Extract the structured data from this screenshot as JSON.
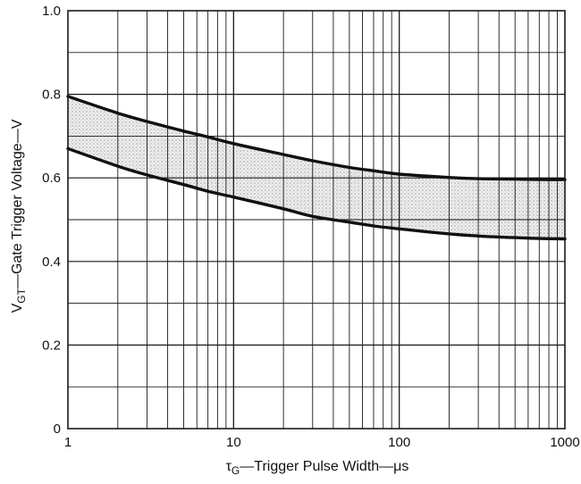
{
  "chart_data": {
    "type": "area",
    "title": "",
    "xlabel": {
      "symbol": "τ",
      "subscript": "G",
      "text": "—Trigger Pulse Width—",
      "unit": "μs"
    },
    "ylabel": {
      "symbol": "V",
      "subscript": "GT",
      "text": "—Gate Trigger Voltage—V"
    },
    "x_scale": "log",
    "xlim": [
      1,
      1000
    ],
    "ylim": [
      0,
      1.0
    ],
    "x_ticks": [
      {
        "value": 1,
        "label": "1"
      },
      {
        "value": 10,
        "label": "10"
      },
      {
        "value": 100,
        "label": "100"
      },
      {
        "value": 1000,
        "label": "1000"
      }
    ],
    "y_ticks": [
      {
        "value": 0,
        "label": "0"
      },
      {
        "value": 0.2,
        "label": "0.2"
      },
      {
        "value": 0.4,
        "label": "0.4"
      },
      {
        "value": 0.6,
        "label": "0.6"
      },
      {
        "value": 0.8,
        "label": "0.8"
      },
      {
        "value": 1.0,
        "label": "1.0"
      }
    ],
    "grid": true,
    "y_grid_step": 0.1,
    "shaded_band": true,
    "series": [
      {
        "role": "upper",
        "x": [
          1,
          2,
          3,
          5,
          7,
          10,
          20,
          30,
          50,
          70,
          100,
          200,
          300,
          500,
          700,
          1000
        ],
        "y": [
          0.795,
          0.755,
          0.735,
          0.712,
          0.698,
          0.682,
          0.656,
          0.641,
          0.625,
          0.617,
          0.609,
          0.601,
          0.598,
          0.597,
          0.596,
          0.596
        ]
      },
      {
        "role": "lower",
        "x": [
          1,
          2,
          3,
          5,
          7,
          10,
          20,
          30,
          50,
          70,
          100,
          200,
          300,
          500,
          700,
          1000
        ],
        "y": [
          0.67,
          0.628,
          0.607,
          0.584,
          0.568,
          0.554,
          0.526,
          0.508,
          0.494,
          0.485,
          0.478,
          0.466,
          0.461,
          0.457,
          0.455,
          0.454
        ]
      }
    ],
    "colors": {
      "line": "#111111",
      "grid": "#1a1a1a",
      "band": "#cfcfcf"
    }
  }
}
